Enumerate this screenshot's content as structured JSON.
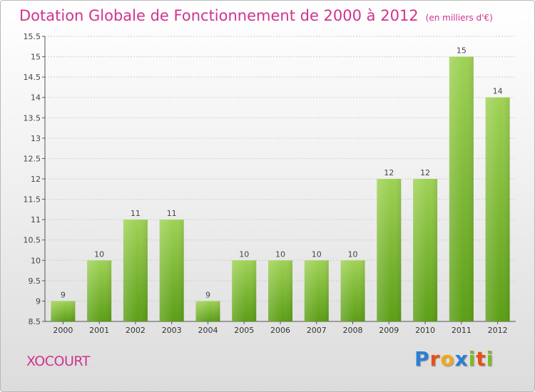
{
  "title": "Dotation Globale de Fonctionnement de 2000 à 2012",
  "subtitle": "(en milliers d'€)",
  "commune": "XOCOURT",
  "logo": {
    "text": "Proxiti",
    "letters": [
      {
        "char": "P",
        "color": "#2b7fd4"
      },
      {
        "char": "r",
        "color": "#e8501a"
      },
      {
        "char": "o",
        "color": "#f2a81d"
      },
      {
        "char": "x",
        "color": "#2b7fd4"
      },
      {
        "char": "i",
        "color": "#7dbb2a"
      },
      {
        "char": "t",
        "color": "#e8501a"
      },
      {
        "char": "i",
        "color": "#7dbb2a"
      }
    ]
  },
  "colors": {
    "title": "#d0338f",
    "bar_light": "#9fd255",
    "bar_dark": "#5b9e16",
    "grid": "#cfcfcf",
    "axis": "#555555"
  },
  "chart_data": {
    "type": "bar",
    "categories": [
      "2000",
      "2001",
      "2002",
      "2003",
      "2004",
      "2005",
      "2006",
      "2007",
      "2008",
      "2009",
      "2010",
      "2011",
      "2012"
    ],
    "values": [
      9,
      10,
      11,
      11,
      9,
      10,
      10,
      10,
      10,
      12,
      12,
      15,
      14
    ],
    "data_labels": [
      "9",
      "10",
      "11",
      "11",
      "9",
      "10",
      "10",
      "10",
      "10",
      "12",
      "12",
      "15",
      "14"
    ],
    "ylim": [
      8.5,
      15.5
    ],
    "yticks": [
      "8.5",
      "9",
      "9.5",
      "10",
      "10.5",
      "11",
      "11.5",
      "12",
      "12.5",
      "13",
      "13.5",
      "14",
      "14.5",
      "15",
      "15.5"
    ],
    "grid": true,
    "xlabel": "",
    "ylabel": ""
  }
}
